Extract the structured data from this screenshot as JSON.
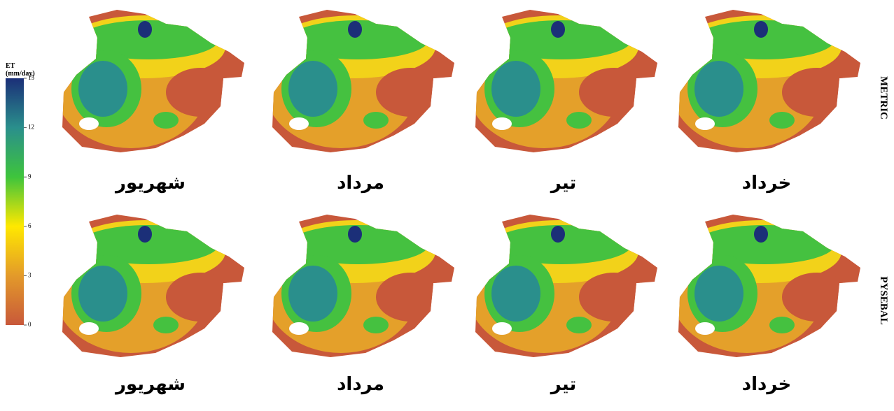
{
  "legend": {
    "title": "ET",
    "unit": "(mm/day)",
    "lim": [
      0,
      15
    ],
    "ticks": [
      0,
      3,
      6,
      9,
      12,
      15
    ]
  },
  "rows": [
    {
      "label": "METRIC",
      "months": [
        "شهریور",
        "مرداد",
        "تیر",
        "خرداد"
      ]
    },
    {
      "label": "PYSEBAL",
      "months": [
        "شهریور",
        "مرداد",
        "تیر",
        "خرداد"
      ]
    }
  ]
}
